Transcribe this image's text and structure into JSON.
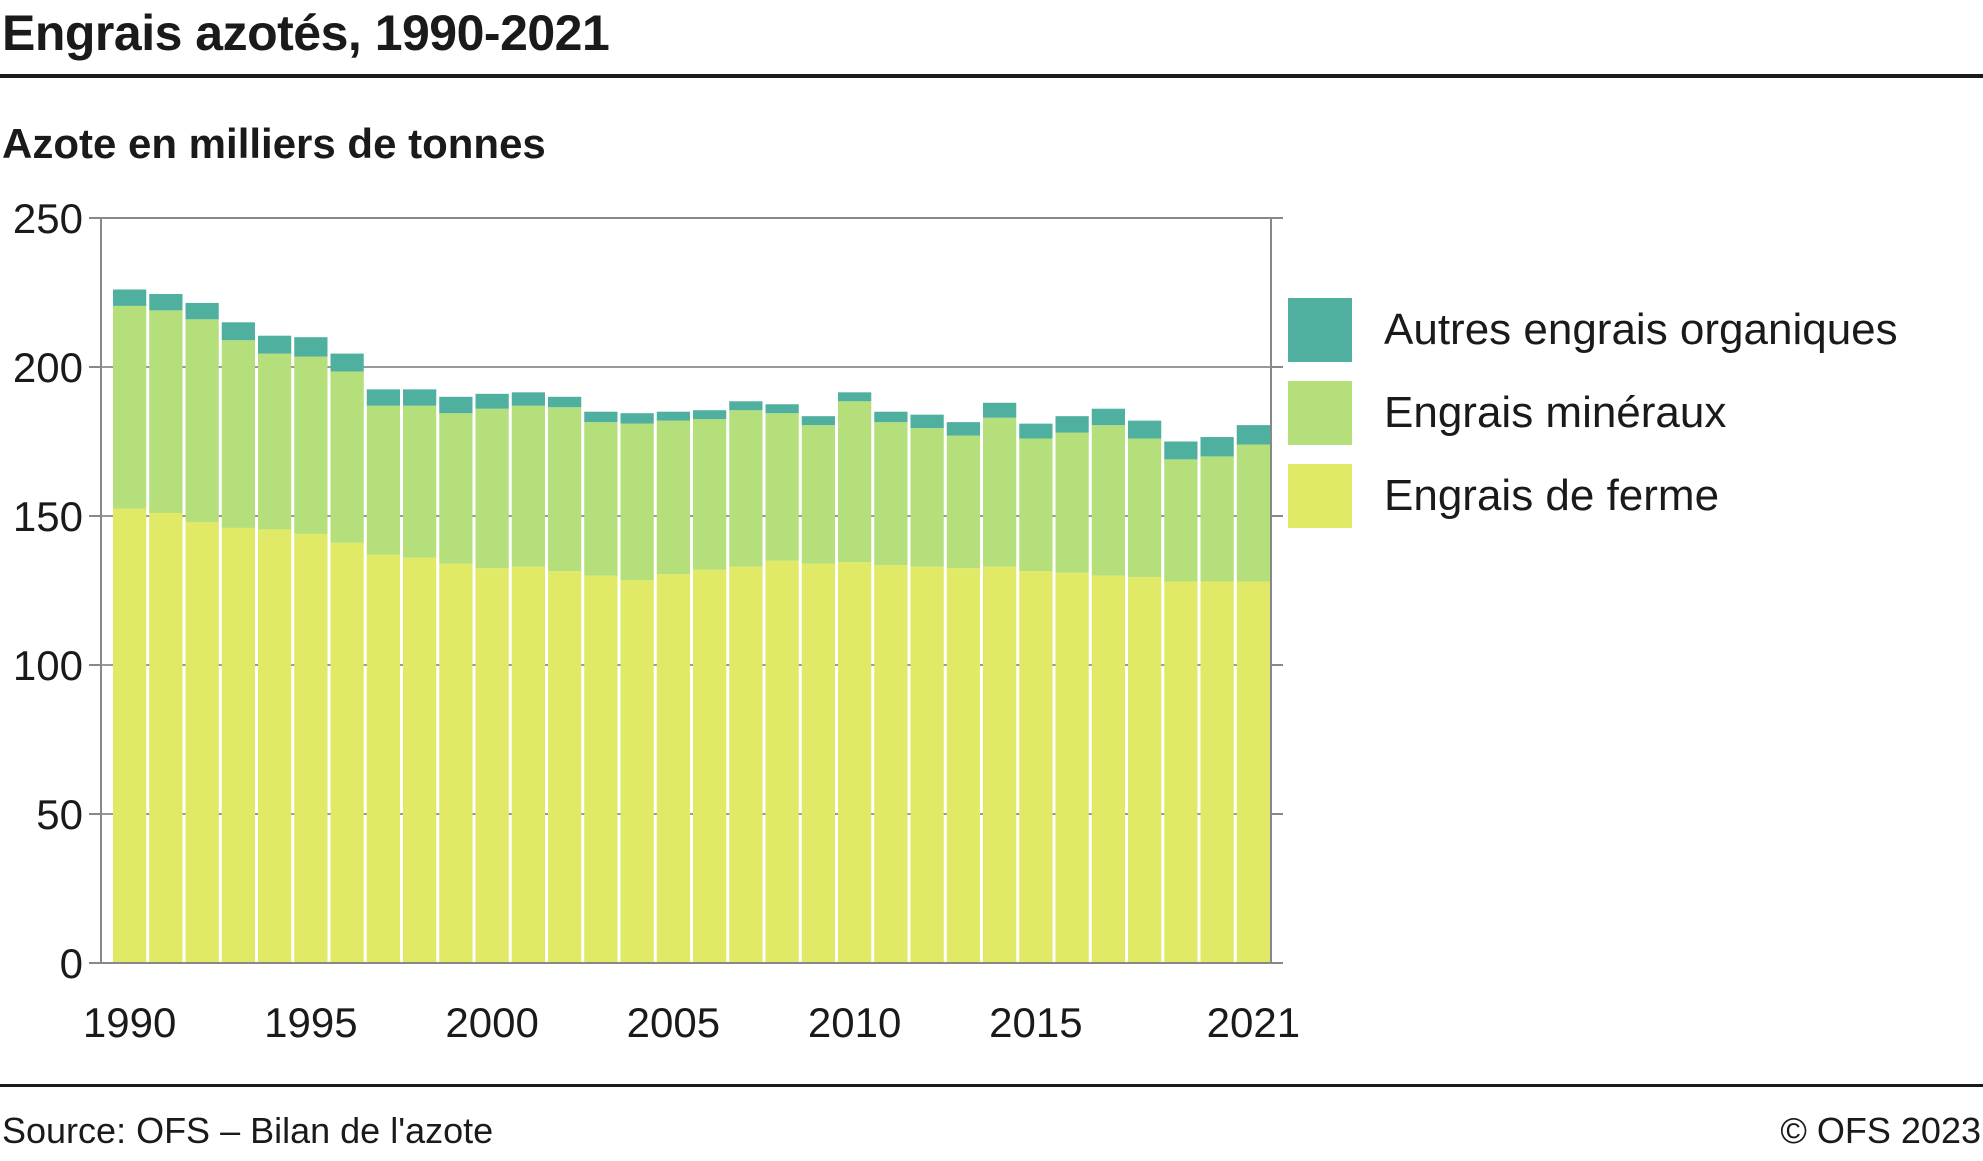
{
  "header": {
    "title": "Engrais azotés, 1990-2021",
    "subtitle": "Azote en milliers de tonnes"
  },
  "footer": {
    "source": "Source: OFS – Bilan de l'azote",
    "copyright": "© OFS 2023"
  },
  "colors": {
    "ferme": "#e0ea66",
    "mineraux": "#b4df7a",
    "organiques": "#4fb0a0",
    "frame": "#888888",
    "grid": "#999999"
  },
  "chart_data": {
    "type": "bar",
    "stacked": true,
    "title": "Engrais azotés, 1990-2021",
    "ylabel": "Azote en milliers de tonnes",
    "ylim": [
      0,
      250
    ],
    "yticks": [
      0,
      50,
      100,
      150,
      200,
      250
    ],
    "xtick_labels": [
      "1990",
      "1995",
      "2000",
      "2005",
      "2010",
      "2015",
      "2021"
    ],
    "categories": [
      "1990",
      "1991",
      "1992",
      "1993",
      "1994",
      "1995",
      "1996",
      "1997",
      "1998",
      "1999",
      "2000",
      "2001",
      "2002",
      "2003",
      "2004",
      "2005",
      "2006",
      "2007",
      "2008",
      "2009",
      "2010",
      "2011",
      "2012",
      "2013",
      "2014",
      "2015",
      "2016",
      "2017",
      "2018",
      "2019",
      "2020",
      "2021"
    ],
    "series": [
      {
        "name": "Engrais de ferme",
        "color_key": "ferme",
        "values": [
          152.5,
          151,
          148,
          146,
          145.5,
          144,
          141,
          137,
          136,
          134,
          132.5,
          133,
          131.5,
          130,
          128.5,
          130.5,
          132,
          133,
          135,
          134,
          134.5,
          133.5,
          133,
          132.5,
          133,
          131.5,
          131,
          130,
          129.5,
          128,
          128,
          128
        ]
      },
      {
        "name": "Engrais minéraux",
        "color_key": "mineraux",
        "values": [
          68,
          68,
          68,
          63,
          59,
          59.5,
          57.5,
          50,
          51,
          50.5,
          53.5,
          54,
          55,
          51.5,
          52.5,
          51.5,
          50.5,
          52.5,
          49.5,
          46.5,
          54,
          48,
          46.5,
          44.5,
          50,
          44.5,
          47,
          50.5,
          46.5,
          41,
          42,
          46
        ]
      },
      {
        "name": "Autres engrais organiques",
        "color_key": "organiques",
        "values": [
          5.5,
          5.5,
          5.5,
          6,
          6,
          6.5,
          6,
          5.5,
          5.5,
          5.5,
          5,
          4.5,
          3.5,
          3.5,
          3.5,
          3,
          3,
          3,
          3,
          3,
          3,
          3.5,
          4.5,
          4.5,
          5,
          5,
          5.5,
          5.5,
          6,
          6,
          6.5,
          6.5
        ]
      }
    ],
    "legend": [
      "Autres engrais organiques",
      "Engrais minéraux",
      "Engrais de ferme"
    ],
    "legend_position": "right",
    "grid": true
  }
}
